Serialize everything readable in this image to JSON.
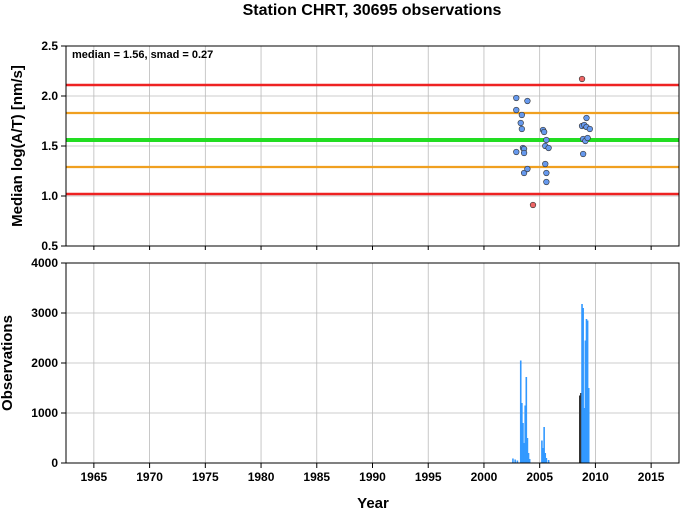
{
  "title": "Station CHRT, 30695 observations",
  "colors": {
    "red_line": "#ee2222",
    "orange_line": "#f0a020",
    "green_line": "#22dd22",
    "point_in": "#6699ee",
    "point_out": "#ee6666",
    "bar": "#3399ff",
    "bar_dark": "#333333",
    "grid": "#bbbbbb"
  },
  "chart_data": [
    {
      "type": "scatter",
      "ylabel": "Median log(A/T) [nm/s]",
      "annotation": "median = 1.56, smad = 0.27",
      "xlim": [
        1962.5,
        2017.5
      ],
      "ylim": [
        0.5,
        2.5
      ],
      "yticks": [
        "0.5",
        "1.0",
        "1.5",
        "2.0",
        "2.5"
      ],
      "grid": true,
      "reference_lines": [
        {
          "y": 2.11,
          "color": "red"
        },
        {
          "y": 1.83,
          "color": "orange"
        },
        {
          "y": 1.56,
          "color": "green"
        },
        {
          "y": 1.29,
          "color": "orange"
        },
        {
          "y": 1.02,
          "color": "red"
        }
      ],
      "points": [
        {
          "x": 2002.9,
          "y": 1.98,
          "status": "in"
        },
        {
          "x": 2002.9,
          "y": 1.86,
          "status": "in"
        },
        {
          "x": 2003.3,
          "y": 1.73,
          "status": "in"
        },
        {
          "x": 2003.4,
          "y": 1.81,
          "status": "in"
        },
        {
          "x": 2003.4,
          "y": 1.67,
          "status": "in"
        },
        {
          "x": 2002.9,
          "y": 1.44,
          "status": "in"
        },
        {
          "x": 2003.5,
          "y": 1.48,
          "status": "in"
        },
        {
          "x": 2003.6,
          "y": 1.47,
          "status": "in"
        },
        {
          "x": 2003.6,
          "y": 1.43,
          "status": "in"
        },
        {
          "x": 2003.6,
          "y": 1.23,
          "status": "in"
        },
        {
          "x": 2003.9,
          "y": 1.27,
          "status": "in"
        },
        {
          "x": 2003.9,
          "y": 1.95,
          "status": "in"
        },
        {
          "x": 2004.4,
          "y": 0.91,
          "status": "out"
        },
        {
          "x": 2005.3,
          "y": 1.66,
          "status": "in"
        },
        {
          "x": 2005.4,
          "y": 1.64,
          "status": "in"
        },
        {
          "x": 2005.6,
          "y": 1.56,
          "status": "in"
        },
        {
          "x": 2005.5,
          "y": 1.5,
          "status": "in"
        },
        {
          "x": 2005.5,
          "y": 1.32,
          "status": "in"
        },
        {
          "x": 2005.8,
          "y": 1.48,
          "status": "in"
        },
        {
          "x": 2005.6,
          "y": 1.23,
          "status": "in"
        },
        {
          "x": 2005.6,
          "y": 1.14,
          "status": "in"
        },
        {
          "x": 2008.8,
          "y": 2.17,
          "status": "out"
        },
        {
          "x": 2008.8,
          "y": 1.7,
          "status": "in"
        },
        {
          "x": 2008.9,
          "y": 1.57,
          "status": "in"
        },
        {
          "x": 2008.9,
          "y": 1.42,
          "status": "in"
        },
        {
          "x": 2009.0,
          "y": 1.71,
          "status": "in"
        },
        {
          "x": 2009.1,
          "y": 1.55,
          "status": "in"
        },
        {
          "x": 2009.2,
          "y": 1.69,
          "status": "in"
        },
        {
          "x": 2009.2,
          "y": 1.78,
          "status": "in"
        },
        {
          "x": 2009.3,
          "y": 1.58,
          "status": "in"
        },
        {
          "x": 2009.5,
          "y": 1.67,
          "status": "in"
        }
      ]
    },
    {
      "type": "bar",
      "xlabel": "Year",
      "ylabel": "Observations",
      "xlim": [
        1962.5,
        2017.5
      ],
      "ylim": [
        0,
        4000
      ],
      "yticks": [
        "0",
        "1000",
        "2000",
        "3000",
        "4000"
      ],
      "xticks": [
        "1965",
        "1970",
        "1975",
        "1980",
        "1985",
        "1990",
        "1995",
        "2000",
        "2005",
        "2010",
        "2015"
      ],
      "grid": true,
      "bars": [
        {
          "x": 2002.6,
          "value": 90
        },
        {
          "x": 2002.8,
          "value": 70
        },
        {
          "x": 2003.0,
          "value": 50
        },
        {
          "x": 2003.3,
          "value": 2050
        },
        {
          "x": 2003.4,
          "value": 1200
        },
        {
          "x": 2003.5,
          "value": 800
        },
        {
          "x": 2003.6,
          "value": 400
        },
        {
          "x": 2003.7,
          "value": 1150
        },
        {
          "x": 2003.8,
          "value": 1720
        },
        {
          "x": 2003.9,
          "value": 500
        },
        {
          "x": 2004.0,
          "value": 200
        },
        {
          "x": 2004.1,
          "value": 80
        },
        {
          "x": 2005.2,
          "value": 450
        },
        {
          "x": 2005.3,
          "value": 300
        },
        {
          "x": 2005.4,
          "value": 720
        },
        {
          "x": 2005.5,
          "value": 200
        },
        {
          "x": 2005.6,
          "value": 100
        },
        {
          "x": 2005.8,
          "value": 60
        },
        {
          "x": 2008.6,
          "value": 1350,
          "dark": true
        },
        {
          "x": 2008.7,
          "value": 1400,
          "dark": true
        },
        {
          "x": 2008.8,
          "value": 3180
        },
        {
          "x": 2008.9,
          "value": 3100
        },
        {
          "x": 2009.0,
          "value": 1100
        },
        {
          "x": 2009.1,
          "value": 2450
        },
        {
          "x": 2009.2,
          "value": 2880
        },
        {
          "x": 2009.3,
          "value": 2850
        },
        {
          "x": 2009.4,
          "value": 1500
        }
      ]
    }
  ]
}
